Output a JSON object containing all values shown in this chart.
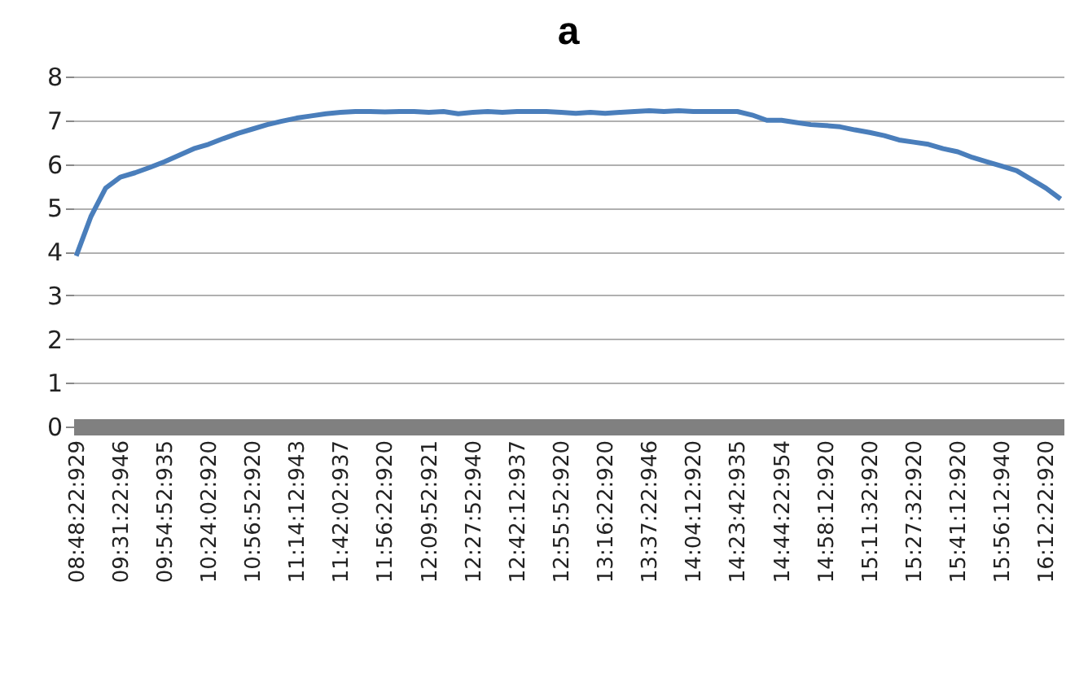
{
  "chart_data": {
    "type": "line",
    "title": "a",
    "categories": [
      "08:48:22:929",
      null,
      null,
      "09:31:22:946",
      null,
      null,
      "09:54:52:935",
      null,
      null,
      "10:24:02:920",
      null,
      null,
      "10:56:52:920",
      null,
      null,
      "11:14:12:943",
      null,
      null,
      "11:42:02:937",
      null,
      null,
      "11:56:22:920",
      null,
      null,
      "12:09:52:921",
      null,
      null,
      "12:27:52:940",
      null,
      null,
      "12:42:12:937",
      null,
      null,
      "12:55:52:920",
      null,
      null,
      "13:16:22:920",
      null,
      null,
      "13:37:22:946",
      null,
      null,
      "14:04:12:920",
      null,
      null,
      "14:23:42:935",
      null,
      null,
      "14:44:22:954",
      null,
      null,
      "14:58:12:920",
      null,
      null,
      "15:11:32:920",
      null,
      null,
      "15:27:32:920",
      null,
      null,
      "15:41:12:920",
      null,
      null,
      "15:56:12:940",
      null,
      null,
      "16:12:22:920",
      null
    ],
    "series": [
      {
        "color": "#4a7ebb",
        "values": [
          3.9,
          4.8,
          5.45,
          5.7,
          5.8,
          5.92,
          6.05,
          6.2,
          6.35,
          6.45,
          6.58,
          6.7,
          6.8,
          6.9,
          6.98,
          7.05,
          7.1,
          7.15,
          7.18,
          7.2,
          7.2,
          7.19,
          7.2,
          7.2,
          7.18,
          7.2,
          7.15,
          7.18,
          7.2,
          7.18,
          7.2,
          7.2,
          7.2,
          7.18,
          7.16,
          7.18,
          7.16,
          7.18,
          7.2,
          7.22,
          7.2,
          7.22,
          7.2,
          7.2,
          7.2,
          7.2,
          7.12,
          7.0,
          7.0,
          6.95,
          6.9,
          6.88,
          6.85,
          6.78,
          6.72,
          6.65,
          6.55,
          6.5,
          6.45,
          6.35,
          6.28,
          6.15,
          6.05,
          5.95,
          5.85,
          5.65,
          5.45,
          5.2
        ]
      }
    ],
    "ylim": [
      0,
      8
    ],
    "yticks": [
      0,
      1,
      2,
      3,
      4,
      5,
      6,
      7,
      8
    ],
    "grid": "y",
    "legend": false,
    "marker": "none",
    "line_style": "solid"
  }
}
